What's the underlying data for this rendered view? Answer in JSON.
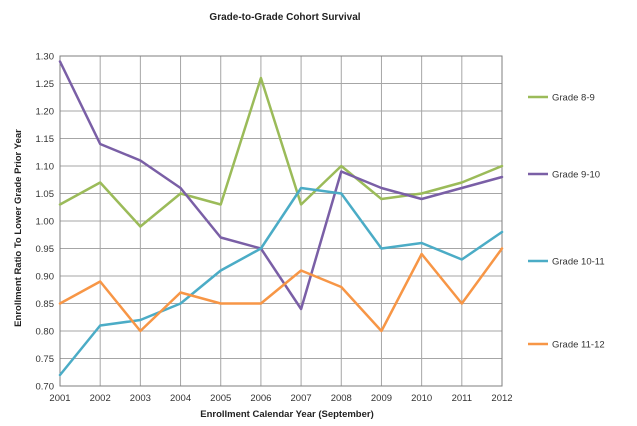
{
  "chart_data": {
    "type": "line",
    "title": "Grade-to-Grade Cohort Survival",
    "xlabel": "Enrollment Calendar Year (September)",
    "ylabel": "Enrollment Ratio To Lower Grade Prior Year",
    "x": [
      2001,
      2002,
      2003,
      2004,
      2005,
      2006,
      2007,
      2008,
      2009,
      2010,
      2011,
      2012
    ],
    "x_tick_labels": [
      "2001",
      "2002",
      "2003",
      "2004",
      "2005",
      "2006",
      "2007",
      "2008",
      "2009",
      "2010",
      "2011",
      "2012"
    ],
    "ylim": [
      0.7,
      1.3
    ],
    "y_ticks": [
      0.7,
      0.75,
      0.8,
      0.85,
      0.9,
      0.95,
      1.0,
      1.05,
      1.1,
      1.15,
      1.2,
      1.25,
      1.3
    ],
    "y_tick_labels": [
      "0.70",
      "0.75",
      "0.80",
      "0.85",
      "0.90",
      "0.95",
      "1.00",
      "1.05",
      "1.10",
      "1.15",
      "1.20",
      "1.25",
      "1.30"
    ],
    "grid": true,
    "legend_position": "right",
    "series": [
      {
        "name": "Grade 8-9",
        "color": "#9BBB59",
        "values": [
          1.03,
          1.07,
          0.99,
          1.05,
          1.03,
          1.26,
          1.03,
          1.1,
          1.04,
          1.05,
          1.07,
          1.1
        ]
      },
      {
        "name": "Grade 9-10",
        "color": "#7A5FA6",
        "values": [
          1.29,
          1.14,
          1.11,
          1.06,
          0.97,
          0.95,
          0.84,
          1.09,
          1.06,
          1.04,
          1.06,
          1.08
        ]
      },
      {
        "name": "Grade 10-11",
        "color": "#4BACC6",
        "values": [
          0.72,
          0.81,
          0.82,
          0.85,
          0.91,
          0.95,
          1.06,
          1.05,
          0.95,
          0.96,
          0.93,
          0.98
        ]
      },
      {
        "name": "Grade 11-12",
        "color": "#F79646",
        "values": [
          0.85,
          0.89,
          0.8,
          0.87,
          0.85,
          0.85,
          0.91,
          0.88,
          0.8,
          0.94,
          0.85,
          0.95
        ]
      }
    ]
  }
}
